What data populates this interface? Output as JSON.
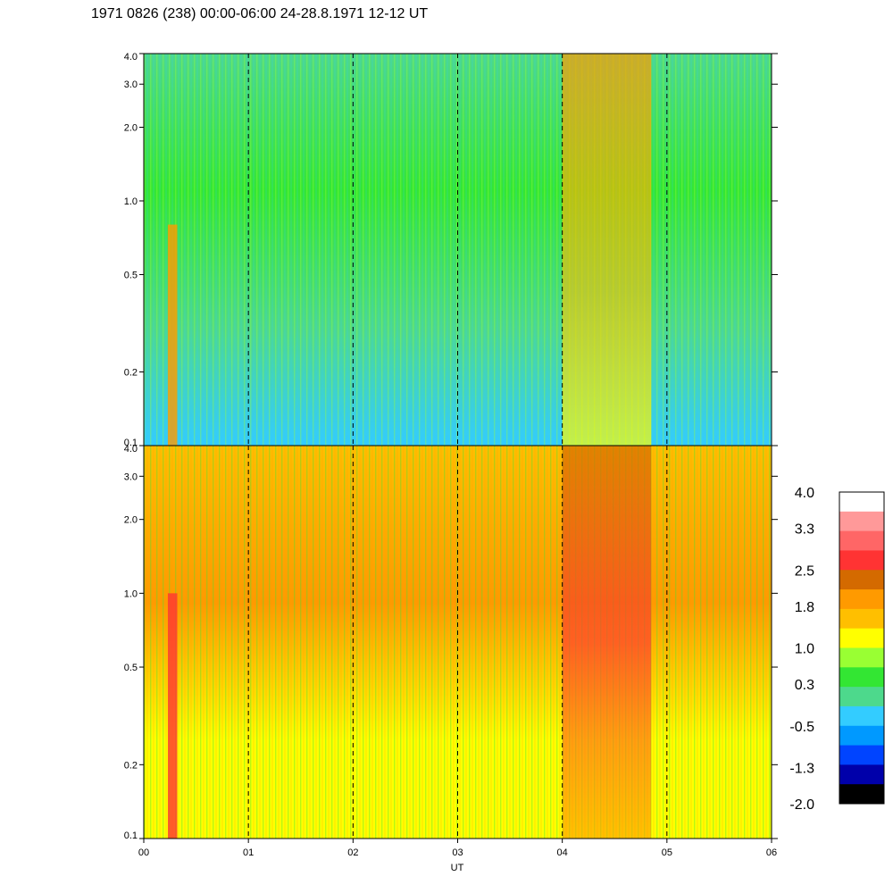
{
  "chart_data": {
    "type": "heatmap",
    "title": "1971 0826 (238) 00:00-06:00 24-28.8.1971  12-12 UT",
    "xlabel": "UT",
    "x_ticks": [
      "00",
      "01",
      "02",
      "03",
      "04",
      "05",
      "06"
    ],
    "x_range": [
      0,
      6
    ],
    "y_scale": "log",
    "y_range": [
      0.1,
      4.0
    ],
    "y_ticks": [
      "4.0",
      "3.0",
      "2.0",
      "1.0",
      "0.5",
      "0.2",
      "0.1"
    ],
    "y_tick_values": [
      4.0,
      3.0,
      2.0,
      1.0,
      0.5,
      0.2,
      0.1
    ],
    "vertical_gridlines": [
      1,
      2,
      3,
      4,
      5
    ],
    "panels": [
      {
        "name": "upper",
        "dominant": "green-cyan",
        "enhanced_interval": [
          4.0,
          4.85
        ]
      },
      {
        "name": "lower",
        "dominant": "yellow-orange",
        "enhanced_interval": [
          4.0,
          4.85
        ]
      }
    ],
    "colorbar": {
      "labels": [
        "4.0",
        "3.3",
        "2.5",
        "1.8",
        "1.0",
        "0.3",
        "-0.5",
        "-1.3",
        "-2.0"
      ],
      "label_values": [
        4.0,
        3.3,
        2.5,
        1.8,
        1.0,
        0.3,
        -0.5,
        -1.3,
        -2.0
      ],
      "colors": [
        "#ffffff",
        "#ff9999",
        "#ff6666",
        "#ff3333",
        "#d46a00",
        "#ff9a00",
        "#ffbf00",
        "#ffff00",
        "#99ff33",
        "#33e633",
        "#4dd98c",
        "#33ccff",
        "#0099ff",
        "#0044ff",
        "#0000aa",
        "#000000"
      ]
    }
  }
}
